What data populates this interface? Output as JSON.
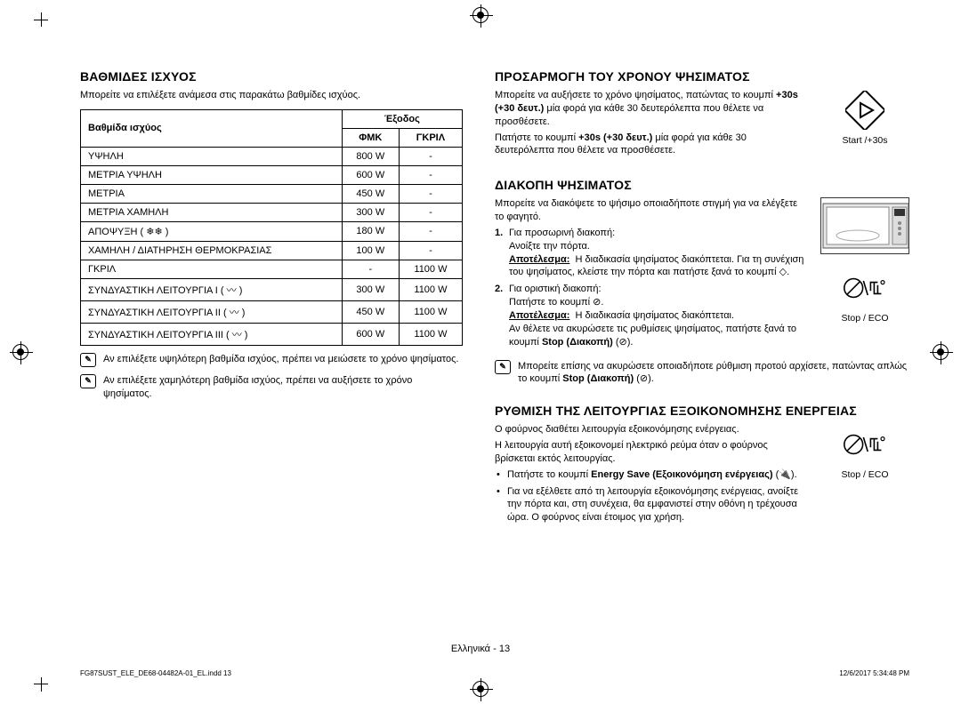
{
  "left": {
    "heading": "ΒΑΘΜΙΔΕΣ ΙΣΧΥΟΣ",
    "intro": "Μπορείτε να επιλέξετε ανάμεσα στις παρακάτω βαθμίδες ισχύος.",
    "table": {
      "header_level": "Βαθμίδα ισχύος",
      "header_output": "Έξοδος",
      "header_col1": "ΦΜΚ",
      "header_col2": "ΓΚΡΙΛ",
      "rows": [
        {
          "level": "ΥΨΗΛΗ",
          "c1": "800 W",
          "c2": "-"
        },
        {
          "level": "ΜΕΤΡΙΑ ΥΨΗΛΗ",
          "c1": "600 W",
          "c2": "-"
        },
        {
          "level": "ΜΕΤΡΙΑ",
          "c1": "450 W",
          "c2": "-"
        },
        {
          "level": "ΜΕΤΡΙΑ ΧΑΜΗΛΗ",
          "c1": "300 W",
          "c2": "-"
        },
        {
          "level": "ΑΠΟΨΥΞΗ ( ❄❄ )",
          "c1": "180 W",
          "c2": "-"
        },
        {
          "level": "ΧΑΜΗΛΗ / ΔΙΑΤΗΡΗΣΗ ΘΕΡΜΟΚΡΑΣΙΑΣ",
          "c1": "100 W",
          "c2": "-"
        },
        {
          "level": "ΓΚΡΙΛ",
          "c1": "-",
          "c2": "1100 W"
        },
        {
          "level": "ΣΥΝΔΥΑΣΤΙΚΗ ΛΕΙΤΟΥΡΓΙΑ I ( 〰 )",
          "c1": "300 W",
          "c2": "1100 W"
        },
        {
          "level": "ΣΥΝΔΥΑΣΤΙΚΗ ΛΕΙΤΟΥΡΓΙΑ II ( 〰 )",
          "c1": "450 W",
          "c2": "1100 W"
        },
        {
          "level": "ΣΥΝΔΥΑΣΤΙΚΗ ΛΕΙΤΟΥΡΓΙΑ III ( 〰 )",
          "c1": "600 W",
          "c2": "1100 W"
        }
      ]
    },
    "note1": "Αν επιλέξετε υψηλότερη βαθμίδα ισχύος, πρέπει να μειώσετε το χρόνο ψησίματος.",
    "note2": "Αν επιλέξετε χαμηλότερη βαθμίδα ισχύος, πρέπει να αυξήσετε το χρόνο ψησίματος."
  },
  "right": {
    "adjust": {
      "heading": "ΠΡΟΣΑΡΜΟΓΗ ΤΟΥ ΧΡΟΝΟΥ ΨΗΣΙΜΑΤΟΣ",
      "p1a": "Μπορείτε να αυξήσετε το χρόνο ψησίματος, πατώντας το κουμπί ",
      "p1b": "+30s (+30 δευτ.)",
      "p1c": " μία φορά για κάθε 30 δευτερόλεπτα που θέλετε να προσθέσετε.",
      "p2a": "Πατήστε το κουμπί ",
      "p2b": "+30s (+30 δευτ.)",
      "p2c": " μία φορά για κάθε 30 δευτερόλεπτα που θέλετε να προσθέσετε.",
      "icon_label": "Start /+30s"
    },
    "stop": {
      "heading": "ΔΙΑΚΟΠΗ ΨΗΣΙΜΑΤΟΣ",
      "intro": "Μπορείτε να διακόψετε το ψήσιμο οποιαδήποτε στιγμή για να ελέγξετε το φαγητό.",
      "li1_title": "Για προσωρινή διακοπή:",
      "li1_line": "Ανοίξτε την πόρτα.",
      "li1_result_label": "Αποτέλεσμα:",
      "li1_result": "Η διαδικασία ψησίματος διακόπτεται. Για τη συνέχιση του ψησίματος, κλείστε την πόρτα και πατήστε ξανά το κουμπί ◇.",
      "li2_title": "Για οριστική διακοπή:",
      "li2_line": "Πατήστε το κουμπί ⊘.",
      "li2_result_label": "Αποτέλεσμα:",
      "li2_result_a": "Η διαδικασία ψησίματος διακόπτεται.",
      "li2_result_b": "Αν θέλετε να ακυρώσετε τις ρυθμίσεις ψησίματος, πατήστε ξανά το κουμπί ",
      "li2_result_b_bold": "Stop (Διακοπή)",
      "li2_result_b_end": " (⊘).",
      "icon_label": "Stop / ECO",
      "note_a": "Μπορείτε επίσης να ακυρώσετε οποιαδήποτε ρύθμιση προτού αρχίσετε, πατώντας απλώς το κουμπί ",
      "note_b": "Stop (Διακοπή)",
      "note_c": " (⊘)."
    },
    "eco": {
      "heading": "ΡΥΘΜΙΣΗ ΤΗΣ ΛΕΙΤΟΥΡΓΙΑΣ ΕΞΟΙΚΟΝΟΜΗΣΗΣ ΕΝΕΡΓΕΙΑΣ",
      "p1": "Ο φούρνος διαθέτει λειτουργία εξοικονόμησης ενέργειας.",
      "p2": "Η λειτουργία αυτή εξοικονομεί ηλεκτρικό ρεύμα όταν ο φούρνος βρίσκεται εκτός λειτουργίας.",
      "b1a": "Πατήστε το κουμπί ",
      "b1b": "Energy Save (Εξοικονόμηση ενέργειας)",
      "b1c": " (🔌).",
      "b2": "Για να εξέλθετε από τη λειτουργία εξοικονόμησης ενέργειας, ανοίξτε την πόρτα και, στη συνέχεια, θα εμφανιστεί στην οθόνη η τρέχουσα ώρα. Ο φούρνος είναι έτοιμος για χρήση.",
      "icon_label": "Stop / ECO"
    }
  },
  "footer": {
    "center": "Ελληνικά - 13",
    "left": "FG87SUST_ELE_DE68-04482A-01_EL.indd   13",
    "right": "12/6/2017   5:34:48 PM"
  }
}
